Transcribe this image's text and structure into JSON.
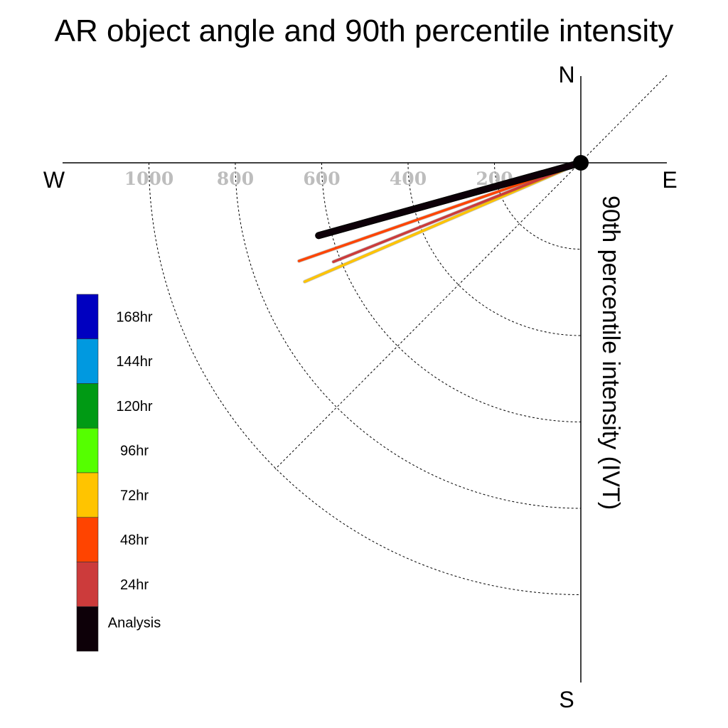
{
  "chart_data": {
    "type": "polar",
    "title": "AR object angle and 90th percentile intensity",
    "ylabel": "90th percentile intensity (IVT)",
    "compass": {
      "north": "N",
      "east": "E",
      "south": "S",
      "west": "W"
    },
    "radial_ticks": [
      "1000",
      "800",
      "600",
      "400",
      "200"
    ],
    "radial_tick_values": [
      1000,
      800,
      600,
      400,
      200
    ],
    "radial_range": [
      0,
      1200
    ],
    "grid": "dashed arcs every 200 IVT and diagonal line",
    "legend": {
      "placement": "left",
      "items": [
        {
          "label": "168hr",
          "color": "#0000c0"
        },
        {
          "label": "144hr",
          "color": "#0099e0"
        },
        {
          "label": "120hr",
          "color": "#009a14"
        },
        {
          "label": "96hr",
          "color": "#55ff00"
        },
        {
          "label": "72hr",
          "color": "#ffc400"
        },
        {
          "label": "48hr",
          "color": "#ff4400"
        },
        {
          "label": "24hr",
          "color": "#cc3b3b"
        },
        {
          "label": "Analysis",
          "color": "#0d0008"
        }
      ]
    },
    "series": [
      {
        "name": "72hr",
        "color": "#ffc400",
        "intensity": 696,
        "angle_deg_below_west": 23.3
      },
      {
        "name": "48hr",
        "color": "#ff4400",
        "intensity": 691,
        "angle_deg_below_west": 19.2
      },
      {
        "name": "24hr",
        "color": "#cc3b3b",
        "intensity": 617,
        "angle_deg_below_west": 21.8
      },
      {
        "name": "Analysis",
        "color": "#0d0008",
        "intensity": 630,
        "angle_deg_below_west": 15.5
      }
    ]
  }
}
